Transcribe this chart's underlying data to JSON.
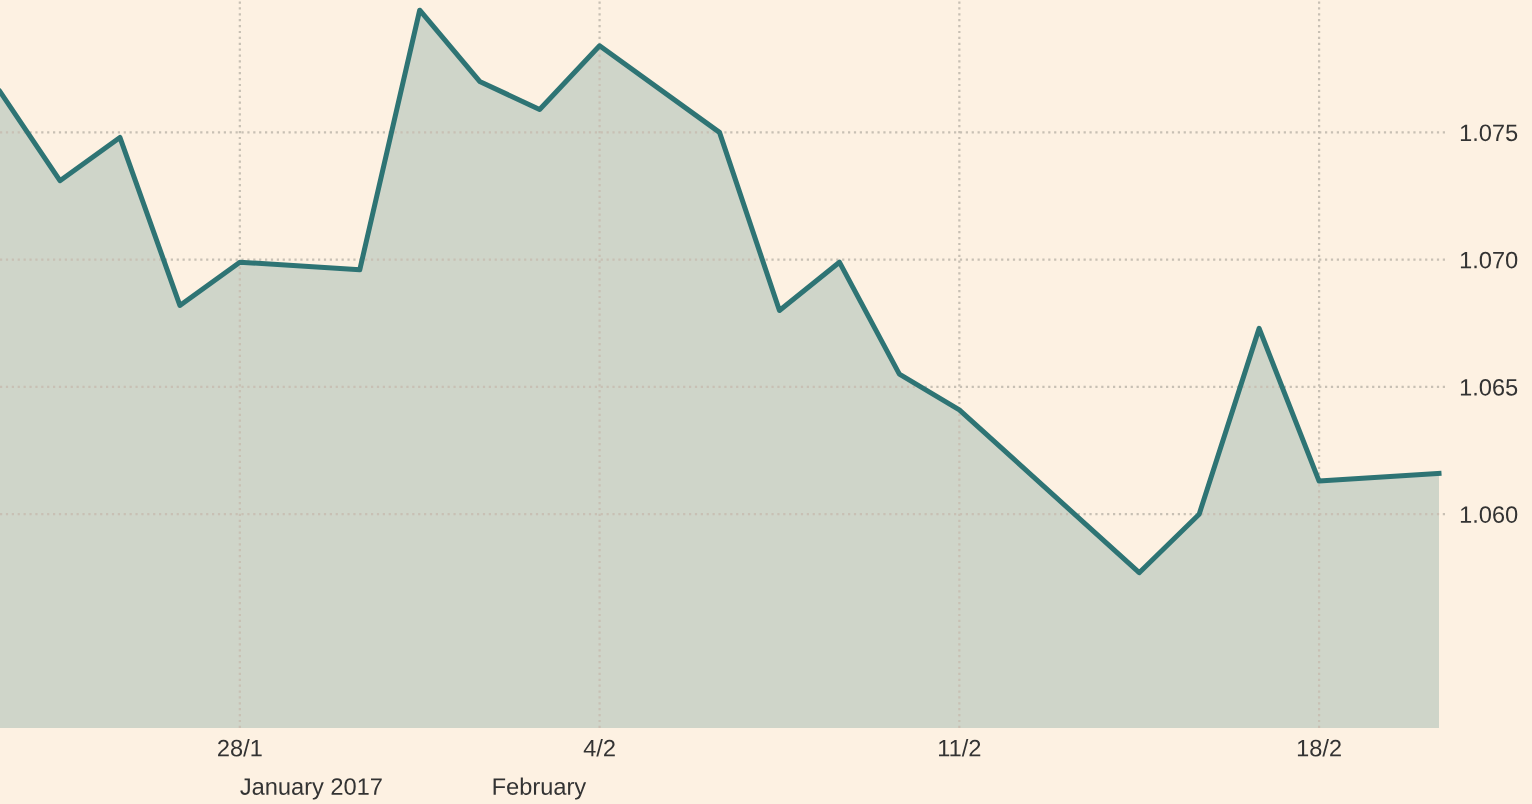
{
  "chart_data": {
    "type": "area",
    "categories": [
      null,
      null,
      null,
      null,
      "28/1",
      null,
      null,
      null,
      null,
      null,
      "4/2",
      null,
      null,
      null,
      null,
      null,
      "11/2",
      null,
      null,
      null,
      null,
      null,
      "18/2",
      null,
      null
    ],
    "series": [
      {
        "color": "#2e7474",
        "values": [
          1.0766,
          1.0731,
          1.0748,
          1.0682,
          1.0699,
          null,
          1.0696,
          1.0798,
          1.077,
          1.0759,
          1.0784,
          null,
          1.075,
          1.068,
          1.0699,
          1.0655,
          1.0641,
          null,
          null,
          1.0577,
          1.06,
          1.0673,
          1.0613,
          null,
          1.0616
        ]
      }
    ],
    "ylim": [
      1.0516,
      1.0802
    ],
    "yticks": [
      {
        "value": 1.06,
        "label": "1.060"
      },
      {
        "value": 1.065,
        "label": "1.065"
      },
      {
        "value": 1.07,
        "label": "1.070"
      },
      {
        "value": 1.075,
        "label": "1.075"
      }
    ],
    "annotations": [
      "January 2017",
      "February"
    ],
    "grid": true,
    "marker": "none",
    "line_style": "solid",
    "legend": false
  }
}
